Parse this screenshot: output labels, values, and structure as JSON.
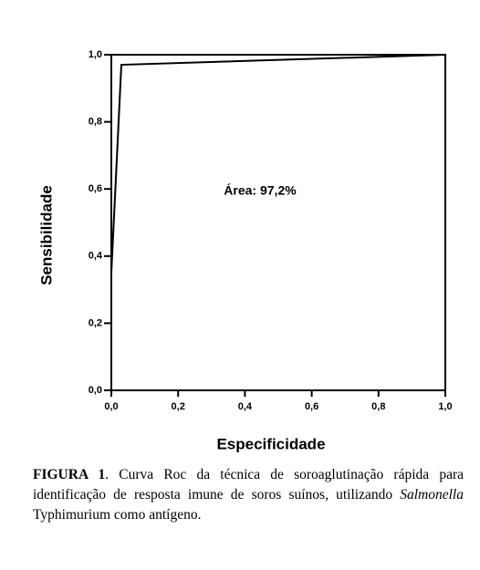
{
  "chart_data": {
    "type": "line",
    "x": [
      0,
      0.03,
      1.0
    ],
    "values": [
      0.35,
      0.97,
      1.0
    ],
    "color": "#000000",
    "xlabel": "Especificidade",
    "ylabel": "Sensibilidade",
    "annotation": "Área: 97,2%",
    "xlim": [
      0,
      1
    ],
    "ylim": [
      0,
      1
    ],
    "xticks": [
      {
        "value": 0,
        "label": "0,0"
      },
      {
        "value": 0.2,
        "label": "0,2"
      },
      {
        "value": 0.4,
        "label": "0,4"
      },
      {
        "value": 0.6,
        "label": "0,6"
      },
      {
        "value": 0.8,
        "label": "0,8"
      },
      {
        "value": 1,
        "label": "1,0"
      }
    ],
    "yticks": [
      {
        "value": 0,
        "label": "0,0"
      },
      {
        "value": 0.2,
        "label": "0,2"
      },
      {
        "value": 0.4,
        "label": "0,4"
      },
      {
        "value": 0.6,
        "label": "0,6"
      },
      {
        "value": 0.8,
        "label": "0,8"
      },
      {
        "value": 1,
        "label": "1,0"
      }
    ],
    "grid": false
  },
  "caption": [
    {
      "text": "FIGURA 1",
      "bold": true
    },
    {
      "text": ". Curva Roc da técnica de soroaglutinação rápida para identificação de resposta imune de soros suínos, utilizando "
    },
    {
      "text": "Salmonella",
      "italic": true
    },
    {
      "text": " Typhimurium como antígeno."
    }
  ]
}
